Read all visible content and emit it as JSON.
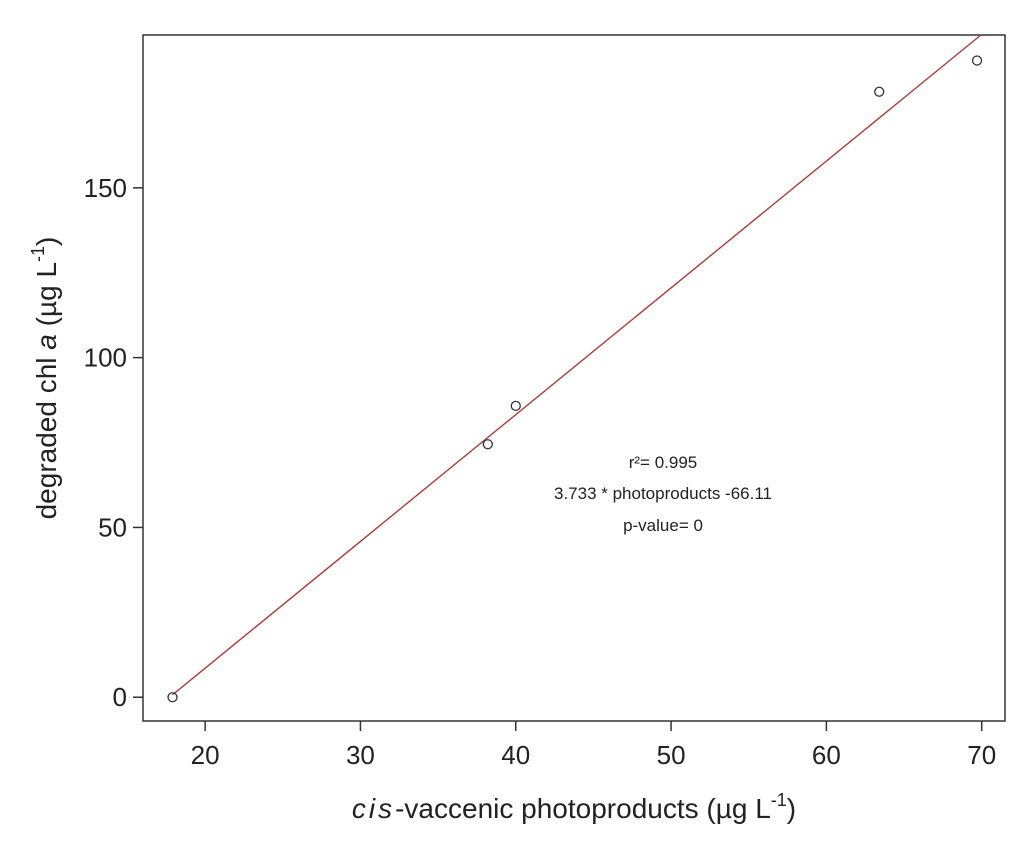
{
  "chart_data": {
    "type": "scatter",
    "points": [
      {
        "x": 17.9,
        "y": 0
      },
      {
        "x": 38.2,
        "y": 74.5
      },
      {
        "x": 40.0,
        "y": 85.8
      },
      {
        "x": 63.4,
        "y": 178.3
      },
      {
        "x": 69.7,
        "y": 187.5
      }
    ],
    "fit_line": {
      "slope": 3.733,
      "intercept": -66.11,
      "color": "#b03a3a"
    },
    "xlim": [
      16,
      71.5
    ],
    "ylim": [
      -7,
      195
    ],
    "xticks": [
      20,
      30,
      40,
      50,
      60,
      70
    ],
    "yticks": [
      0,
      50,
      100,
      150
    ],
    "xticks_labels": [
      "20",
      "30",
      "40",
      "50",
      "60",
      "70"
    ],
    "yticks_labels": [
      "0",
      "50",
      "100",
      "150"
    ],
    "xlabel": {
      "italic": "cis",
      "text": "-vaccenic photoproducts (µg L",
      "sup": "-1",
      "close": ")"
    },
    "ylabel": {
      "prefix": "degraded chl ",
      "italic": "a",
      "text": " (µg L",
      "sup": "-1",
      "close": ")"
    },
    "annotations": [
      "r²= 0.995",
      "3.733 * photoproducts -66.11",
      "p-value= 0"
    ],
    "grid": false,
    "legend": "none"
  }
}
